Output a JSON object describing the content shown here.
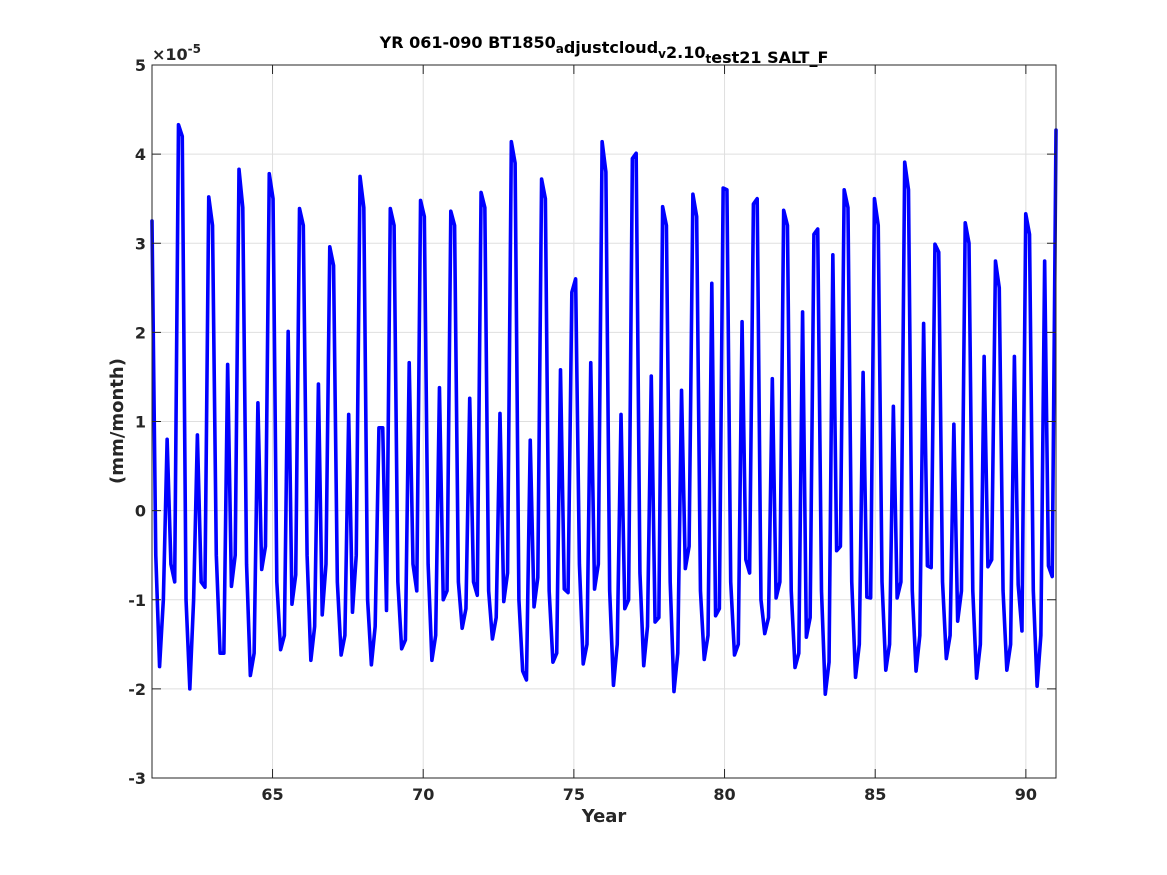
{
  "chart_data": {
    "type": "line",
    "title": "YR 061-090 BT1850",
    "title_parts": [
      {
        "text": "YR 061-090 BT1850",
        "sub": false
      },
      {
        "text": "a",
        "sub": true
      },
      {
        "text": "djustcloud",
        "sub": false
      },
      {
        "text": "v",
        "sub": true
      },
      {
        "text": "2.10",
        "sub": false
      },
      {
        "text": "t",
        "sub": true
      },
      {
        "text": "est21 SALT_F",
        "sub": false
      }
    ],
    "xlabel": "Year",
    "ylabel": "(mm/month)",
    "exponent": {
      "base": "×10",
      "power": "-5"
    },
    "xlim": [
      61,
      91
    ],
    "ylim": [
      -3,
      5
    ],
    "xticks": [
      65,
      70,
      75,
      80,
      85,
      90
    ],
    "yticks": [
      -3,
      -2,
      -1,
      0,
      1,
      2,
      3,
      4,
      5
    ],
    "grid": true,
    "series_color": "#0000ff",
    "series": [
      {
        "values": [
          3.25,
          -0.5,
          -1.75,
          -1.0,
          0.8,
          -0.6,
          -0.8,
          4.33,
          4.2,
          -1.0,
          -2.0,
          -1.0,
          0.85,
          -0.8,
          -0.86,
          3.52,
          3.2,
          -0.5,
          -1.6,
          -1.6,
          1.64,
          -0.85,
          -0.5,
          3.83,
          3.4,
          -0.6,
          -1.85,
          -1.6,
          1.21,
          -0.66,
          -0.4,
          3.78,
          3.5,
          -0.8,
          -1.56,
          -1.4,
          2.01,
          -1.05,
          -0.72,
          3.39,
          3.2,
          -0.5,
          -1.68,
          -1.3,
          1.42,
          -1.17,
          -0.6,
          2.96,
          2.75,
          -0.8,
          -1.62,
          -1.4,
          1.08,
          -1.14,
          -0.5,
          3.75,
          3.4,
          -1.0,
          -1.73,
          -1.3,
          0.93,
          0.93,
          -1.12,
          3.39,
          3.2,
          -0.8,
          -1.55,
          -1.45,
          1.66,
          -0.6,
          -0.9,
          3.48,
          3.3,
          -0.6,
          -1.68,
          -1.4,
          1.38,
          -1.0,
          -0.9,
          3.36,
          3.2,
          -0.8,
          -1.32,
          -1.1,
          1.26,
          -0.8,
          -0.95,
          3.57,
          3.4,
          -0.9,
          -1.44,
          -1.2,
          1.09,
          -1.02,
          -0.7,
          4.14,
          3.9,
          -1.0,
          -1.8,
          -1.9,
          0.79,
          -1.08,
          -0.75,
          3.72,
          3.5,
          -0.9,
          -1.7,
          -1.6,
          1.58,
          -0.88,
          -0.92,
          2.45,
          2.6,
          -0.6,
          -1.72,
          -1.5,
          1.66,
          -0.88,
          -0.6,
          4.14,
          3.8,
          -0.9,
          -1.96,
          -1.5,
          1.08,
          -1.1,
          -1.0,
          3.95,
          4.01,
          -0.7,
          -1.74,
          -1.3,
          1.51,
          -1.25,
          -1.2,
          3.41,
          3.2,
          -0.8,
          -2.03,
          -1.6,
          1.35,
          -0.65,
          -0.4,
          3.55,
          3.3,
          -0.9,
          -1.67,
          -1.4,
          2.55,
          -1.18,
          -1.1,
          3.62,
          3.6,
          -0.8,
          -1.62,
          -1.5,
          2.12,
          -0.55,
          -0.7,
          3.44,
          3.5,
          -1.0,
          -1.38,
          -1.2,
          1.48,
          -0.98,
          -0.8,
          3.37,
          3.2,
          -0.9,
          -1.76,
          -1.6,
          2.23,
          -1.42,
          -1.2,
          3.1,
          3.16,
          -0.9,
          -2.06,
          -1.7,
          2.87,
          -0.45,
          -0.4,
          3.6,
          3.4,
          -0.8,
          -1.87,
          -1.5,
          1.55,
          -0.97,
          -0.98,
          3.5,
          3.2,
          -0.8,
          -1.79,
          -1.5,
          1.17,
          -0.98,
          -0.8,
          3.91,
          3.6,
          -0.9,
          -1.8,
          -1.4,
          2.1,
          -0.62,
          -0.64,
          2.99,
          2.9,
          -0.8,
          -1.66,
          -1.4,
          0.97,
          -1.24,
          -0.9,
          3.23,
          3.0,
          -0.9,
          -1.88,
          -1.5,
          1.73,
          -0.63,
          -0.55,
          2.8,
          2.5,
          -0.9,
          -1.79,
          -1.5,
          1.73,
          -0.83,
          -1.35,
          3.33,
          3.1,
          -0.9,
          -1.97,
          -1.4,
          2.8,
          -0.62,
          -0.74,
          4.27
        ]
      }
    ]
  }
}
